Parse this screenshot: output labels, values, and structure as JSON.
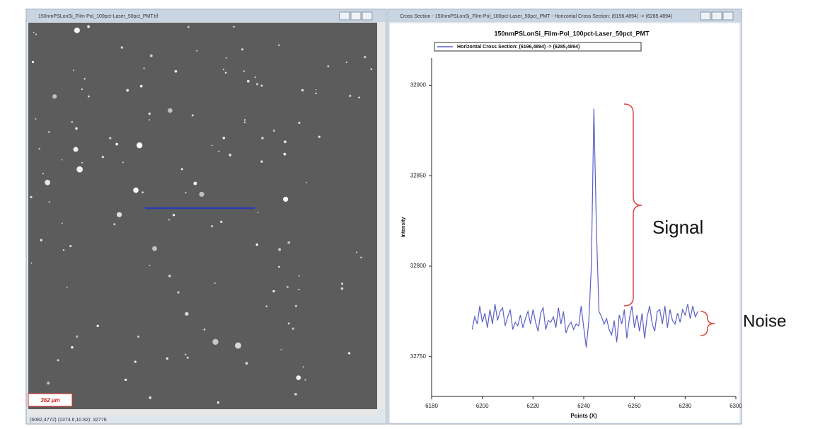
{
  "image_window": {
    "title": "150nmPSLonSi_Film-Pol_100pct-Laser_50pct_PMT.tif",
    "scale_bar": "362 µm",
    "status": "(6082,4772) (1374.6,10.82): 32776"
  },
  "chart_window": {
    "title": "Cross Section - 150nmPSLonSi_Film-Pol_100pct-Laser_50pct_PMT - Horizontal Cross Section: (6196,4894) -> (6285,4894)"
  },
  "chart_data": {
    "type": "line",
    "title": "150nmPSLonSi_Film-Pol_100pct-Laser_50pct_PMT",
    "x_label": "Points (X)",
    "y_label": "Intensity",
    "x": [
      6196,
      6197,
      6198,
      6199,
      6200,
      6201,
      6202,
      6203,
      6204,
      6205,
      6206,
      6207,
      6208,
      6209,
      6210,
      6211,
      6212,
      6213,
      6214,
      6215,
      6216,
      6217,
      6218,
      6219,
      6220,
      6221,
      6222,
      6223,
      6224,
      6225,
      6226,
      6227,
      6228,
      6229,
      6230,
      6231,
      6232,
      6233,
      6234,
      6235,
      6236,
      6237,
      6238,
      6239,
      6240,
      6241,
      6242,
      6243,
      6244,
      6245,
      6246,
      6247,
      6248,
      6249,
      6250,
      6251,
      6252,
      6253,
      6254,
      6255,
      6256,
      6257,
      6258,
      6259,
      6260,
      6261,
      6262,
      6263,
      6264,
      6265,
      6266,
      6267,
      6268,
      6269,
      6270,
      6271,
      6272,
      6273,
      6274,
      6275,
      6276,
      6277,
      6278,
      6279,
      6280,
      6281,
      6282,
      6283,
      6284,
      6285
    ],
    "series": [
      {
        "name": "Horizontal Cross Section: (6196,4894) -> (6285,4894)",
        "color": "#5b5fc7",
        "values": [
          32765,
          32772,
          32768,
          32778,
          32769,
          32774,
          32766,
          32776,
          32768,
          32779,
          32770,
          32775,
          32777,
          32767,
          32772,
          32776,
          32765,
          32769,
          32767,
          32773,
          32766,
          32771,
          32775,
          32768,
          32776,
          32769,
          32764,
          32774,
          32777,
          32765,
          32770,
          32769,
          32772,
          32766,
          32777,
          32768,
          32775,
          32763,
          32767,
          32769,
          32765,
          32768,
          32767,
          32778,
          32766,
          32755,
          32770,
          32800,
          32887,
          32820,
          32775,
          32772,
          32768,
          32771,
          32765,
          32762,
          32770,
          32758,
          32773,
          32768,
          32776,
          32760,
          32771,
          32778,
          32766,
          32773,
          32764,
          32774,
          32760,
          32772,
          32778,
          32768,
          32764,
          32775,
          32776,
          32768,
          32778,
          32766,
          32776,
          32770,
          32768,
          32774,
          32769,
          32776,
          32773,
          32779,
          32771,
          32778,
          32772,
          32775
        ]
      }
    ],
    "xlim": [
      6180,
      6300
    ],
    "xticks": [
      6180,
      6200,
      6220,
      6240,
      6260,
      6280,
      6300
    ],
    "ylim": [
      32728,
      32915
    ],
    "yticks": [
      32750,
      32800,
      32850,
      32900
    ]
  },
  "annotations": {
    "signal": "Signal",
    "noise": "Noise"
  }
}
